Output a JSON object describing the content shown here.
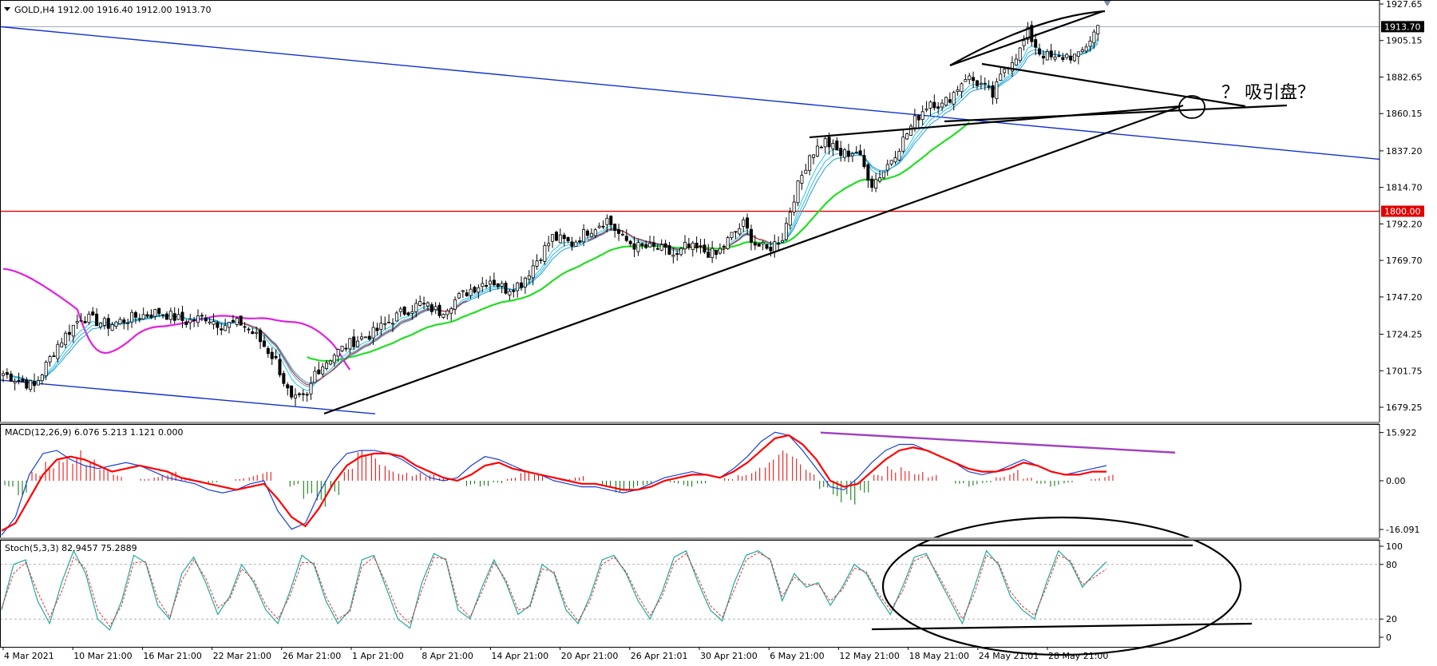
{
  "chart_data": [
    {
      "type": "candlestick",
      "symbol_header": "GOLD,H4  1912.00 1916.40 1912.00 1913.70",
      "y_ticks": [
        "1927.65",
        "1905.15",
        "1882.65",
        "1860.15",
        "1837.20",
        "1814.70",
        "1792.20",
        "1769.70",
        "1747.20",
        "1724.25",
        "1701.75",
        "1679.25"
      ],
      "ylim": [
        1667.9,
        1932.1
      ],
      "x_ticks": [
        "4 Mar 2021",
        "10 Mar 21:00",
        "16 Mar 21:00",
        "22 Mar 21:00",
        "26 Mar 21:00",
        "1 Apr 21:00",
        "8 Apr 21:00",
        "14 Apr 21:00",
        "20 Apr 21:00",
        "26 Apr 21:01",
        "30 Apr 21:00",
        "6 May 21:00",
        "12 May 21:00",
        "18 May 21:00",
        "24 May 21:01",
        "28 May 21:00"
      ],
      "price_tags": [
        {
          "value": 1913.7,
          "label": "1913.70",
          "color": "#000000"
        },
        {
          "value": 1800.0,
          "label": "1800.00",
          "color": "#e00000"
        }
      ],
      "horizontal_levels": [
        {
          "value": 1800.0,
          "color": "#e00000"
        },
        {
          "value": 1913.7,
          "color": "#9aa6bf"
        }
      ],
      "annotation": "？ 吸引盘？",
      "colors": {
        "up": "#000000",
        "down": "#000000",
        "ma_fast": "#e03030",
        "ma_cyan": "#27c8e0",
        "ma_green": "#22dd22",
        "ma_magenta": "#e020e0",
        "channel": "#1030d0",
        "trendline": "#000000"
      },
      "close_path": [
        [
          0,
          1700
        ],
        [
          8,
          1692
        ],
        [
          14,
          1718
        ],
        [
          20,
          1735
        ],
        [
          27,
          1730
        ],
        [
          34,
          1735
        ],
        [
          40,
          1738
        ],
        [
          47,
          1732
        ],
        [
          52,
          1735
        ],
        [
          56,
          1730
        ],
        [
          61,
          1731
        ],
        [
          65,
          1723
        ],
        [
          70,
          1708
        ],
        [
          74,
          1683
        ],
        [
          78,
          1685
        ],
        [
          80,
          1701
        ],
        [
          85,
          1712
        ],
        [
          90,
          1720
        ],
        [
          95,
          1725
        ],
        [
          102,
          1737
        ],
        [
          107,
          1743
        ],
        [
          112,
          1738
        ],
        [
          117,
          1747
        ],
        [
          120,
          1752
        ],
        [
          125,
          1758
        ],
        [
          129,
          1752
        ],
        [
          133,
          1756
        ],
        [
          137,
          1770
        ],
        [
          141,
          1784
        ],
        [
          146,
          1780
        ],
        [
          150,
          1788
        ],
        [
          155,
          1795
        ],
        [
          159,
          1783
        ],
        [
          163,
          1778
        ],
        [
          168,
          1777
        ],
        [
          173,
          1772
        ],
        [
          175,
          1778
        ],
        [
          179,
          1776
        ],
        [
          183,
          1773
        ],
        [
          187,
          1785
        ],
        [
          190,
          1792
        ],
        [
          193,
          1780
        ],
        [
          196,
          1776
        ],
        [
          200,
          1784
        ],
        [
          203,
          1809
        ],
        [
          207,
          1835
        ],
        [
          211,
          1843
        ],
        [
          215,
          1835
        ],
        [
          219,
          1837
        ],
        [
          223,
          1817
        ],
        [
          226,
          1825
        ],
        [
          230,
          1840
        ],
        [
          234,
          1856
        ],
        [
          238,
          1868
        ],
        [
          241,
          1865
        ],
        [
          244,
          1873
        ],
        [
          247,
          1883
        ],
        [
          251,
          1878
        ],
        [
          254,
          1871
        ],
        [
          257,
          1888
        ],
        [
          261,
          1899
        ],
        [
          263,
          1910
        ],
        [
          266,
          1898
        ],
        [
          270,
          1893
        ],
        [
          273,
          1896
        ],
        [
          276,
          1895
        ],
        [
          279,
          1906
        ],
        [
          281,
          1914
        ]
      ]
    },
    {
      "type": "line",
      "indicator_header": "MACD(12,26,9) 6.076 5.213 1.121 0.000",
      "y_ticks": [
        "15.922",
        "0.00",
        "-16.091"
      ],
      "ylim": [
        -18.0,
        18.3
      ],
      "series": [
        {
          "kind": "histogram",
          "pos_color": "#e00000",
          "neg_color": "#007000",
          "values": [
            -2,
            -5,
            3,
            8,
            12,
            11,
            7,
            4,
            2,
            0,
            1,
            2,
            3,
            1,
            0,
            -1,
            0,
            1,
            2,
            3,
            0,
            -2,
            -8,
            -12,
            -5,
            4,
            10,
            9,
            6,
            4,
            3,
            2,
            1,
            0,
            -2,
            -3,
            -1,
            1,
            3,
            2,
            0,
            1,
            2,
            0,
            -2,
            -4,
            -3,
            -2,
            0,
            -1,
            -2,
            -1,
            0,
            1,
            3,
            5,
            7,
            10,
            8,
            4,
            -4,
            -9,
            -8,
            -4,
            2,
            5,
            6,
            4,
            2,
            0,
            -1,
            -2,
            -1,
            2,
            4,
            1,
            -1,
            -2,
            -1,
            0,
            1,
            2
          ]
        },
        {
          "name_hidden": true,
          "color": "#ff0000",
          "values": [
            -16.5,
            -14,
            -6,
            2,
            7,
            8,
            7,
            5,
            3,
            4,
            5,
            4,
            3,
            1,
            0,
            -1,
            -2,
            -3,
            -2,
            -1,
            -6,
            -12,
            -15,
            -9,
            -1,
            5,
            8,
            9,
            9,
            8,
            5,
            3,
            1,
            0,
            2,
            5,
            6,
            4,
            3,
            2,
            1,
            0,
            -1,
            -1,
            -2,
            -3,
            -3,
            -2,
            0,
            1,
            2,
            2,
            1,
            3,
            6,
            10,
            14,
            15,
            12,
            7,
            0,
            -2,
            -1,
            3,
            7,
            10,
            11,
            10,
            8,
            6,
            4,
            3,
            3,
            4,
            6,
            5,
            3,
            2,
            2,
            3,
            3
          ]
        },
        {
          "name_hidden": true,
          "color": "#1a3fd9",
          "values": [
            -18,
            -12,
            2,
            9,
            10,
            7,
            5,
            4,
            5,
            6,
            5,
            3,
            1,
            0,
            -1,
            -3,
            -4,
            -3,
            -1,
            0,
            -10,
            -16,
            -14,
            -4,
            4,
            9,
            10,
            10,
            9,
            7,
            4,
            1,
            0,
            1,
            5,
            8,
            7,
            5,
            3,
            2,
            0,
            -1,
            -2,
            -2,
            -3,
            -4,
            -3,
            -1,
            1,
            2,
            3,
            2,
            1,
            4,
            8,
            13,
            16,
            15,
            10,
            4,
            -2,
            -3,
            1,
            6,
            10,
            12,
            12,
            10,
            8,
            6,
            3,
            2,
            3,
            5,
            7,
            5,
            3,
            2,
            3,
            4,
            5
          ]
        },
        {
          "name_hidden": true,
          "kind": "trendline",
          "color": "#a040c0",
          "values": [
            15.9,
            9.3
          ]
        }
      ]
    },
    {
      "type": "line",
      "indicator_header": "Stoch(5,3,3) 82.9457 75.2889",
      "y_ticks": [
        "100",
        "80",
        "20",
        "0"
      ],
      "ylim": [
        -5,
        108
      ],
      "levels": [
        20,
        80
      ],
      "series": [
        {
          "name_hidden": true,
          "color": "#20a8a0",
          "style": "solid",
          "values": [
            30,
            80,
            85,
            40,
            15,
            60,
            95,
            70,
            20,
            8,
            40,
            90,
            82,
            35,
            20,
            70,
            88,
            60,
            25,
            45,
            80,
            60,
            30,
            15,
            50,
            90,
            80,
            40,
            15,
            30,
            85,
            90,
            55,
            20,
            10,
            60,
            92,
            85,
            30,
            20,
            55,
            85,
            60,
            25,
            35,
            80,
            70,
            30,
            15,
            45,
            85,
            90,
            70,
            40,
            20,
            50,
            88,
            95,
            60,
            30,
            18,
            60,
            90,
            95,
            85,
            40,
            70,
            55,
            60,
            35,
            55,
            80,
            70,
            45,
            25,
            55,
            88,
            92,
            65,
            40,
            15,
            55,
            95,
            80,
            45,
            30,
            20,
            60,
            95,
            82,
            55,
            70,
            83
          ]
        },
        {
          "name_hidden": true,
          "color": "#e03030",
          "style": "dashed",
          "values": [
            32,
            70,
            82,
            50,
            22,
            50,
            88,
            75,
            30,
            12,
            35,
            82,
            83,
            42,
            22,
            62,
            85,
            65,
            32,
            42,
            75,
            63,
            35,
            20,
            45,
            82,
            82,
            45,
            20,
            28,
            78,
            88,
            60,
            28,
            15,
            52,
            88,
            86,
            36,
            22,
            50,
            82,
            63,
            30,
            33,
            75,
            72,
            35,
            18,
            40,
            80,
            88,
            72,
            45,
            24,
            45,
            82,
            92,
            65,
            35,
            22,
            52,
            85,
            93,
            86,
            45,
            66,
            58,
            58,
            40,
            52,
            76,
            72,
            48,
            30,
            50,
            84,
            90,
            68,
            44,
            20,
            48,
            90,
            82,
            50,
            34,
            24,
            55,
            90,
            84,
            58,
            66,
            75
          ]
        }
      ]
    }
  ]
}
